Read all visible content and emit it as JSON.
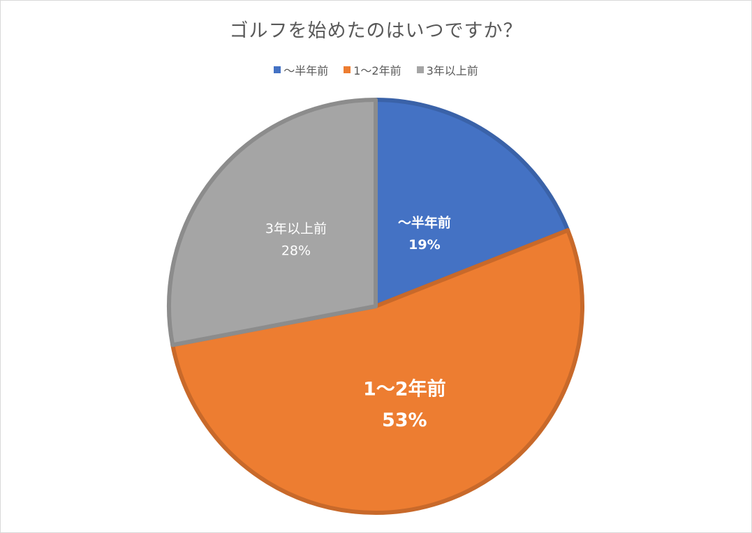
{
  "chart_data": {
    "type": "pie",
    "title": "ゴルフを始めたのはいつですか？",
    "legend_position": "top",
    "categories": [
      "〜半年前",
      "1〜2年前",
      "3年以上前"
    ],
    "values": [
      19,
      53,
      28
    ],
    "data_labels": [
      "19%",
      "53%",
      "28%"
    ],
    "colors": [
      "#4472c4",
      "#ed7d31",
      "#a5a5a5"
    ],
    "border_colors": [
      "#3a62a8",
      "#c8692a",
      "#8c8c8c"
    ]
  }
}
